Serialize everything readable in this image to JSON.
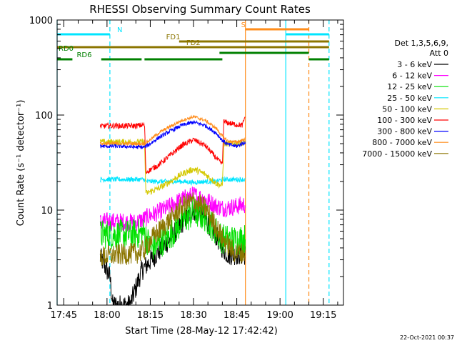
{
  "chart_data": {
    "type": "line",
    "title": "RHESSI Observing Summary Count Rates",
    "xlabel": "Start Time (28-May-12 17:42:42)",
    "ylabel": "Count Rate (s⁻¹ detector⁻¹)",
    "x_scale": "time",
    "y_scale": "log",
    "ylim": [
      1,
      1000
    ],
    "xlim": [
      "17:42:42",
      "19:22:00"
    ],
    "x_ticks": [
      "17:45",
      "18:00",
      "18:15",
      "18:30",
      "18:45",
      "19:00",
      "19:15"
    ],
    "y_ticks": [
      "1",
      "10",
      "100",
      "1000"
    ],
    "grid": false,
    "legend_position": "right",
    "legend_header": [
      "Det 1,3,5,6,9,",
      "Att 0"
    ],
    "footer": "22-Oct-2021 00:37",
    "data_gaps": [
      [
        "17:42:42",
        "17:57:40"
      ],
      [
        "18:48:30",
        "19:22:00"
      ]
    ],
    "series": [
      {
        "name": "3 - 6 keV",
        "color": "#000000",
        "points": [
          [
            "17:57:40",
            3.2
          ],
          [
            "18:01",
            2.0
          ],
          [
            "18:02",
            1.0
          ],
          [
            "18:05",
            1.0
          ],
          [
            "18:08",
            1.0
          ],
          [
            "18:12",
            2.3
          ],
          [
            "18:17",
            3.4
          ],
          [
            "18:22",
            5.0
          ],
          [
            "18:27",
            8.0
          ],
          [
            "18:30",
            10.0
          ],
          [
            "18:33",
            9.0
          ],
          [
            "18:37",
            6.0
          ],
          [
            "18:40",
            4.0
          ],
          [
            "18:42",
            3.4
          ],
          [
            "18:45",
            3.4
          ],
          [
            "18:48",
            3.4
          ]
        ]
      },
      {
        "name": "6 - 12 keV",
        "color": "#ff00ff",
        "points": [
          [
            "17:57:40",
            7.5
          ],
          [
            "18:00",
            7.6
          ],
          [
            "18:05",
            7.5
          ],
          [
            "18:10",
            7.4
          ],
          [
            "18:12",
            7.8
          ],
          [
            "18:15",
            8.8
          ],
          [
            "18:18",
            9.5
          ],
          [
            "18:22",
            11.0
          ],
          [
            "18:26",
            13.0
          ],
          [
            "18:30",
            14.5
          ],
          [
            "18:34",
            13.0
          ],
          [
            "18:38",
            11.0
          ],
          [
            "18:40",
            10.5
          ],
          [
            "18:44",
            10.8
          ],
          [
            "18:48",
            11.5
          ]
        ]
      },
      {
        "name": "12 - 25 keV",
        "color": "#00e000",
        "points": [
          [
            "17:57:40",
            5.5
          ],
          [
            "18:00",
            5.6
          ],
          [
            "18:05",
            5.5
          ],
          [
            "18:10",
            5.6
          ],
          [
            "18:13",
            5.8
          ],
          [
            "18:15",
            4.0
          ],
          [
            "18:18",
            4.4
          ],
          [
            "18:22",
            5.5
          ],
          [
            "18:26",
            7.5
          ],
          [
            "18:30",
            9.5
          ],
          [
            "18:34",
            8.5
          ],
          [
            "18:37",
            6.5
          ],
          [
            "18:40",
            5.0
          ],
          [
            "18:44",
            4.8
          ],
          [
            "18:48",
            5.0
          ]
        ]
      },
      {
        "name": "25 - 50 keV",
        "color": "#00e5ff",
        "points": [
          [
            "17:57:40",
            21
          ],
          [
            "18:00",
            21
          ],
          [
            "18:05",
            21
          ],
          [
            "18:10",
            21
          ],
          [
            "18:13",
            21
          ],
          [
            "18:13.5",
            20
          ],
          [
            "18:18",
            20
          ],
          [
            "18:22",
            20
          ],
          [
            "18:26",
            20
          ],
          [
            "18:30",
            19.5
          ],
          [
            "18:34",
            20
          ],
          [
            "18:38",
            20
          ],
          [
            "18:40",
            21
          ],
          [
            "18:44",
            21
          ],
          [
            "18:48",
            21
          ]
        ]
      },
      {
        "name": "50 - 100 keV",
        "color": "#d4c800",
        "points": [
          [
            "17:57:40",
            52
          ],
          [
            "18:00",
            52
          ],
          [
            "18:05",
            52
          ],
          [
            "18:10",
            52
          ],
          [
            "18:13",
            52
          ],
          [
            "18:13.5",
            15
          ],
          [
            "18:18",
            17
          ],
          [
            "18:22",
            20
          ],
          [
            "18:26",
            24
          ],
          [
            "18:30",
            27
          ],
          [
            "18:34",
            24
          ],
          [
            "18:38",
            19
          ],
          [
            "18:40",
            18
          ],
          [
            "18:40.5",
            50
          ],
          [
            "18:44",
            50
          ],
          [
            "18:48",
            52
          ]
        ]
      },
      {
        "name": "100 - 300 keV",
        "color": "#ff0000",
        "points": [
          [
            "17:57:40",
            76
          ],
          [
            "18:00",
            77
          ],
          [
            "18:05",
            77
          ],
          [
            "18:10",
            77
          ],
          [
            "18:13",
            79
          ],
          [
            "18:13.5",
            25
          ],
          [
            "18:18",
            30
          ],
          [
            "18:22",
            38
          ],
          [
            "18:26",
            48
          ],
          [
            "18:30",
            55
          ],
          [
            "18:34",
            48
          ],
          [
            "18:38",
            35
          ],
          [
            "18:40",
            30
          ],
          [
            "18:40.5",
            85
          ],
          [
            "18:44",
            80
          ],
          [
            "18:47",
            78
          ],
          [
            "18:48",
            100
          ]
        ]
      },
      {
        "name": "300 - 800 keV",
        "color": "#0000ff",
        "points": [
          [
            "17:57:40",
            47
          ],
          [
            "18:00",
            47
          ],
          [
            "18:05",
            47
          ],
          [
            "18:10",
            46
          ],
          [
            "18:13",
            46
          ],
          [
            "18:15",
            50
          ],
          [
            "18:18",
            58
          ],
          [
            "18:22",
            68
          ],
          [
            "18:26",
            78
          ],
          [
            "18:30",
            84
          ],
          [
            "18:34",
            78
          ],
          [
            "18:38",
            64
          ],
          [
            "18:40",
            54
          ],
          [
            "18:42",
            49
          ],
          [
            "18:45",
            47
          ],
          [
            "18:48",
            52
          ]
        ]
      },
      {
        "name": "800 - 7000 keV",
        "color": "#ff8c1a",
        "points": [
          [
            "17:57:40",
            50
          ],
          [
            "18:00",
            50
          ],
          [
            "18:05",
            50
          ],
          [
            "18:10",
            50
          ],
          [
            "18:13",
            50
          ],
          [
            "18:15",
            55
          ],
          [
            "18:18",
            65
          ],
          [
            "18:22",
            76
          ],
          [
            "18:26",
            88
          ],
          [
            "18:30",
            96
          ],
          [
            "18:34",
            88
          ],
          [
            "18:38",
            72
          ],
          [
            "18:40",
            60
          ],
          [
            "18:42",
            53
          ],
          [
            "18:45",
            52
          ],
          [
            "18:48",
            56
          ]
        ]
      },
      {
        "name": "7000 - 15000 keV",
        "color": "#8b7500",
        "points": [
          [
            "17:57:40",
            3.2
          ],
          [
            "18:00",
            3.3
          ],
          [
            "18:05",
            3.4
          ],
          [
            "18:10",
            3.5
          ],
          [
            "18:13",
            3.8
          ],
          [
            "18:15",
            4.8
          ],
          [
            "18:18",
            6.0
          ],
          [
            "18:22",
            8.0
          ],
          [
            "18:26",
            11.0
          ],
          [
            "18:30",
            12.5
          ],
          [
            "18:34",
            10.5
          ],
          [
            "18:37",
            7.5
          ],
          [
            "18:40",
            5.0
          ],
          [
            "18:44",
            3.6
          ],
          [
            "18:48",
            3.5
          ]
        ]
      }
    ],
    "flag_bars": [
      {
        "label": "N",
        "color": "#00e5ff",
        "row": 0,
        "label_at": "18:03",
        "intervals": [
          [
            "17:42:42",
            "18:01"
          ],
          [
            "19:02",
            "19:17"
          ]
        ]
      },
      {
        "label": "S",
        "color": "#ff8c1a",
        "row": 1,
        "label_at": "18:46",
        "intervals": [
          [
            "18:48",
            "19:10"
          ]
        ]
      },
      {
        "label": "FD1",
        "color": "#8b7500",
        "row": 2,
        "label_at": "18:20",
        "intervals": [
          [
            "18:25",
            "19:17"
          ]
        ]
      },
      {
        "label": "FD2",
        "color": "#8b7500",
        "row": 3,
        "label_at": "18:27",
        "intervals": [
          [
            "17:42:42",
            "19:17"
          ]
        ]
      },
      {
        "label": "RD0",
        "color": "#008000",
        "row": 4,
        "label_at": "17:42:42",
        "intervals": [
          [
            "18:39",
            "19:10"
          ]
        ]
      },
      {
        "label": "RD6",
        "color": "#008000",
        "row": 5,
        "label_at": "17:49",
        "intervals": [
          [
            "17:42:42",
            "17:48"
          ],
          [
            "17:58",
            "18:12"
          ],
          [
            "18:13",
            "18:40"
          ],
          [
            "19:10",
            "19:17"
          ]
        ]
      }
    ],
    "vertical_markers": [
      {
        "time": "17:42:42",
        "color": "#00e5ff",
        "style": "solid"
      },
      {
        "time": "18:01",
        "color": "#00e5ff",
        "style": "dashed"
      },
      {
        "time": "18:48",
        "color": "#ff8c1a",
        "style": "solid"
      },
      {
        "time": "19:02",
        "color": "#00e5ff",
        "style": "solid"
      },
      {
        "time": "19:10",
        "color": "#ff8c1a",
        "style": "dashed"
      },
      {
        "time": "19:17",
        "color": "#00e5ff",
        "style": "dashed"
      }
    ]
  }
}
